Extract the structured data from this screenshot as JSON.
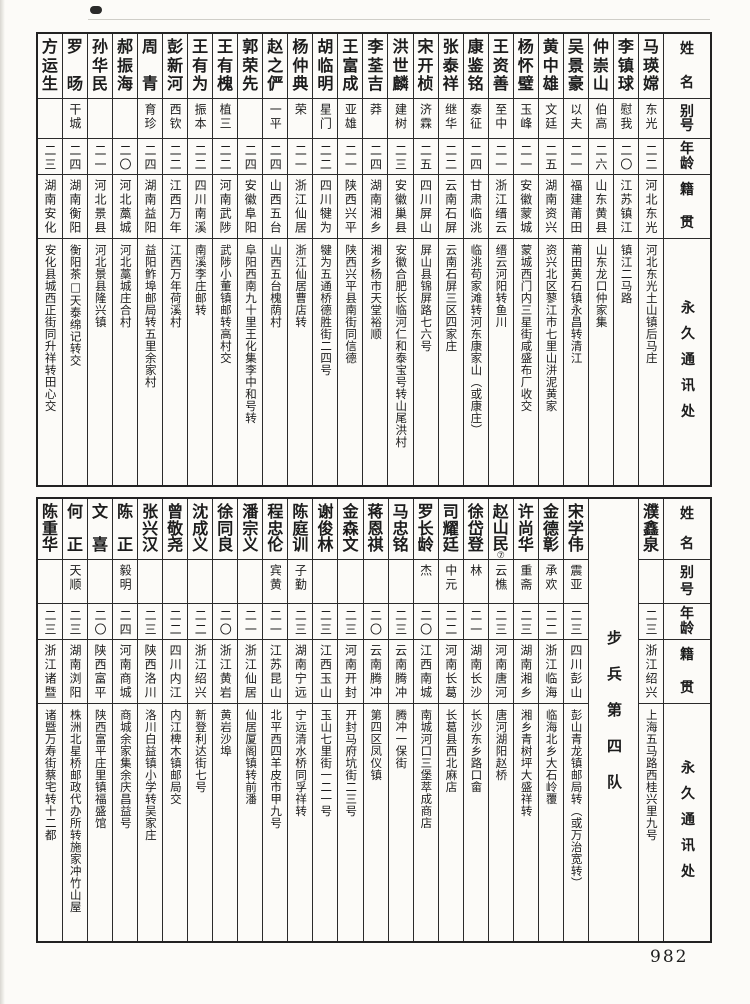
{
  "page_number": "982",
  "ink_color": "#1c1c1c",
  "paper_color": "#fcfbf8",
  "column_headers": {
    "name": "姓名",
    "alias": "别号",
    "age": "年龄",
    "native_place": "籍贯",
    "address": "永久通讯处"
  },
  "tables": [
    {
      "id": "top",
      "columns": [
        {
          "type": "person",
          "name": "马瑛嫦",
          "alias": "东光",
          "age": "二二",
          "native_place": "河北东光",
          "address": "河北东光土山镇后马庄"
        },
        {
          "type": "person",
          "name": "李镇球",
          "alias": "慰我",
          "age": "二〇",
          "native_place": "江苏镇江",
          "address": "镇江二马路"
        },
        {
          "type": "person",
          "name": "仲崇山",
          "alias": "伯高",
          "age": "二六",
          "native_place": "山东黄县",
          "address": "山东龙口仲家集"
        },
        {
          "type": "person",
          "name": "吴景豪",
          "alias": "以夫",
          "age": "二一",
          "native_place": "福建莆田",
          "address": "莆田黄石镇永昌转清江"
        },
        {
          "type": "person",
          "name": "黄中雄",
          "alias": "文廷",
          "age": "二五",
          "native_place": "湖南资兴",
          "address": "资兴北区蓼江市七里山洴泥黄家"
        },
        {
          "type": "person",
          "name": "杨怀璧",
          "alias": "玉峰",
          "age": "二一",
          "native_place": "安徽蒙城",
          "address": "蒙城西门内三星街咸盛布厂收交"
        },
        {
          "type": "person",
          "name": "王资善",
          "alias": "至中",
          "age": "二一",
          "native_place": "浙江缙云",
          "address": "缙云河阳转鱼川"
        },
        {
          "type": "person",
          "name": "康鉴铭",
          "alias": "泰征",
          "age": "二四",
          "native_place": "甘肃临洮",
          "address": "临洮苟家滩转河东康家山（或康庄）"
        },
        {
          "type": "person",
          "name": "张泰祥",
          "alias": "继华",
          "age": "二二",
          "native_place": "云南石屏",
          "address": "云南石屏三区四家庄"
        },
        {
          "type": "person",
          "name": "宋开桢",
          "alias": "济霖",
          "age": "二五",
          "native_place": "四川屏山",
          "address": "屏山县锦屏路七六号"
        },
        {
          "type": "person",
          "name": "洪世麟",
          "alias": "建树",
          "age": "二三",
          "native_place": "安徽巢县",
          "address": "安徽合肥长临河仁和泰宝号转山尾洪村"
        },
        {
          "type": "person",
          "name": "李荃吉",
          "alias": "莽",
          "age": "二四",
          "native_place": "湖南湘乡",
          "address": "湘乡杨市天堂裕顺"
        },
        {
          "type": "person",
          "name": "王富成",
          "alias": "亚雄",
          "age": "二一",
          "native_place": "陕西兴平",
          "address": "陕西兴平县南街同信德"
        },
        {
          "type": "person",
          "name": "胡临明",
          "alias": "星门",
          "age": "二二",
          "native_place": "四川犍为",
          "address": "犍为五通桥德胜街二四号"
        },
        {
          "type": "person",
          "name": "杨仲典",
          "alias": "荣",
          "age": "二一",
          "native_place": "浙江仙居",
          "address": "浙江仙居曹店转"
        },
        {
          "type": "person",
          "name": "赵之俨",
          "alias": "一平",
          "age": "二四",
          "native_place": "山西五台",
          "address": "山西五台槐荫村"
        },
        {
          "type": "person",
          "name": "郭荣先",
          "alias": "",
          "age": "二四",
          "native_place": "安徽阜阳",
          "address": "阜阳西南九十里王化集李中和号转"
        },
        {
          "type": "person",
          "name": "王有槐",
          "alias": "植三",
          "age": "二二",
          "native_place": "河南武陟",
          "address": "武陟小董镇邮转高村交"
        },
        {
          "type": "person",
          "name": "王有为",
          "alias": "振本",
          "age": "二二",
          "native_place": "四川南溪",
          "address": "南溪李庄邮转"
        },
        {
          "type": "person",
          "name": "彭新河",
          "alias": "西钦",
          "age": "二二",
          "native_place": "江西万年",
          "address": "江西万年荷溪村"
        },
        {
          "type": "person",
          "name": "周青",
          "alias": "育珍",
          "age": "二四",
          "native_place": "湖南益阳",
          "address": "益阳鲊埠邮局转五里余家村"
        },
        {
          "type": "person",
          "name": "郝振海",
          "alias": "",
          "age": "二〇",
          "native_place": "河北藁城",
          "address": "河北藁城庄合村"
        },
        {
          "type": "person",
          "name": "孙华民",
          "alias": "",
          "age": "二一",
          "native_place": "河北景县",
          "address": "河北景县隆兴镇"
        },
        {
          "type": "person",
          "name": "罗旸",
          "alias": "干城",
          "age": "二四",
          "native_place": "湖南衡阳",
          "address": "衡阳茶□天泰绵记转交"
        },
        {
          "type": "person",
          "name": "方运生",
          "alias": "",
          "age": "二三",
          "native_place": "湖南安化",
          "address": "安化县城西正街同升祥转田心交"
        }
      ]
    },
    {
      "id": "bottom",
      "columns": [
        {
          "type": "person",
          "name": "濮鑫泉",
          "alias": "",
          "age": "二三",
          "native_place": "浙江绍兴",
          "address": "上海五马路西桂兴里九号"
        },
        {
          "type": "divider",
          "label": "步兵第四队"
        },
        {
          "type": "person",
          "name": "宋学伟",
          "alias": "震亚",
          "age": "二三",
          "native_place": "四川彭山",
          "address": "彭山青龙镇邮局转（或万治宽转）"
        },
        {
          "type": "person",
          "name": "金德彰",
          "alias": "承欢",
          "age": "二二",
          "native_place": "浙江临海",
          "address": "临海北乡大石岭覆"
        },
        {
          "type": "person",
          "name": "许尚华",
          "alias": "重斋",
          "age": "二三",
          "native_place": "湖南湘乡",
          "address": "湘乡青树坪大盛祥转"
        },
        {
          "type": "person",
          "name": "赵山民",
          "note": "⑦",
          "alias": "云樵",
          "age": "二三",
          "native_place": "河南唐河",
          "address": "唐河湖阳赵桥"
        },
        {
          "type": "person",
          "name": "徐岱登",
          "alias": "林",
          "age": "二一",
          "native_place": "湖南长沙",
          "address": "长沙东乡路口畲"
        },
        {
          "type": "person",
          "name": "司耀廷",
          "alias": "中元",
          "age": "二二",
          "native_place": "河南长葛",
          "address": "长葛县西北麻店"
        },
        {
          "type": "person",
          "name": "罗长龄",
          "alias": "杰",
          "age": "二〇",
          "native_place": "江西南城",
          "address": "南城河口三堡萃成商店"
        },
        {
          "type": "person",
          "name": "马忠铭",
          "alias": "",
          "age": "二三",
          "native_place": "云南腾冲",
          "address": "腾冲一保街"
        },
        {
          "type": "person",
          "name": "蒋恩祺",
          "alias": "",
          "age": "二〇",
          "native_place": "云南腾冲",
          "address": "第四区凤仪镇"
        },
        {
          "type": "person",
          "name": "金森文",
          "alias": "",
          "age": "二三",
          "native_place": "河南开封",
          "address": "开封马府坑街二三号"
        },
        {
          "type": "person",
          "name": "谢俊林",
          "alias": "",
          "age": "二三",
          "native_place": "江西玉山",
          "address": "玉山七里街一二一号"
        },
        {
          "type": "person",
          "name": "陈庭训",
          "alias": "子勤",
          "age": "二三",
          "native_place": "湖南宁远",
          "address": "宁远清水桥同孚祥转"
        },
        {
          "type": "person",
          "name": "程忠伦",
          "alias": "宾黄",
          "age": "二一",
          "native_place": "江苏昆山",
          "address": "北平西四羊皮市甲九号"
        },
        {
          "type": "person",
          "name": "潘宗义",
          "alias": "",
          "age": "二一",
          "native_place": "浙江仙居",
          "address": "仙居厦阁镇转前潘"
        },
        {
          "type": "person",
          "name": "徐同良",
          "alias": "",
          "age": "二〇",
          "native_place": "浙江黄岩",
          "address": "黄岩沙埠"
        },
        {
          "type": "person",
          "name": "沈成义",
          "alias": "",
          "age": "二二",
          "native_place": "浙江绍兴",
          "address": "新登利达街七号"
        },
        {
          "type": "person",
          "name": "曾敬尧",
          "alias": "",
          "age": "二二",
          "native_place": "四川内江",
          "address": "内江椑木镇邮局交"
        },
        {
          "type": "person",
          "name": "张兴汉",
          "alias": "",
          "age": "二三",
          "native_place": "陕西洛川",
          "address": "洛川白益镇小学转吴家庄"
        },
        {
          "type": "person",
          "name": "陈正",
          "alias": "毅明",
          "age": "二四",
          "native_place": "河南商城",
          "address": "商城余家集余庆昌益号"
        },
        {
          "type": "person",
          "name": "文喜",
          "alias": "",
          "age": "二〇",
          "native_place": "陕西富平",
          "address": "陕西富平庄里镇福盛馆"
        },
        {
          "type": "person",
          "name": "何正",
          "alias": "天顺",
          "age": "二三",
          "native_place": "湖南浏阳",
          "address": "株洲北星桥邮政代办所转施家冲竹山屋"
        },
        {
          "type": "person",
          "name": "陈重华",
          "alias": "",
          "age": "二三",
          "native_place": "浙江诸暨",
          "address": "诸暨万寿街蔡宅转十二都"
        }
      ]
    }
  ]
}
